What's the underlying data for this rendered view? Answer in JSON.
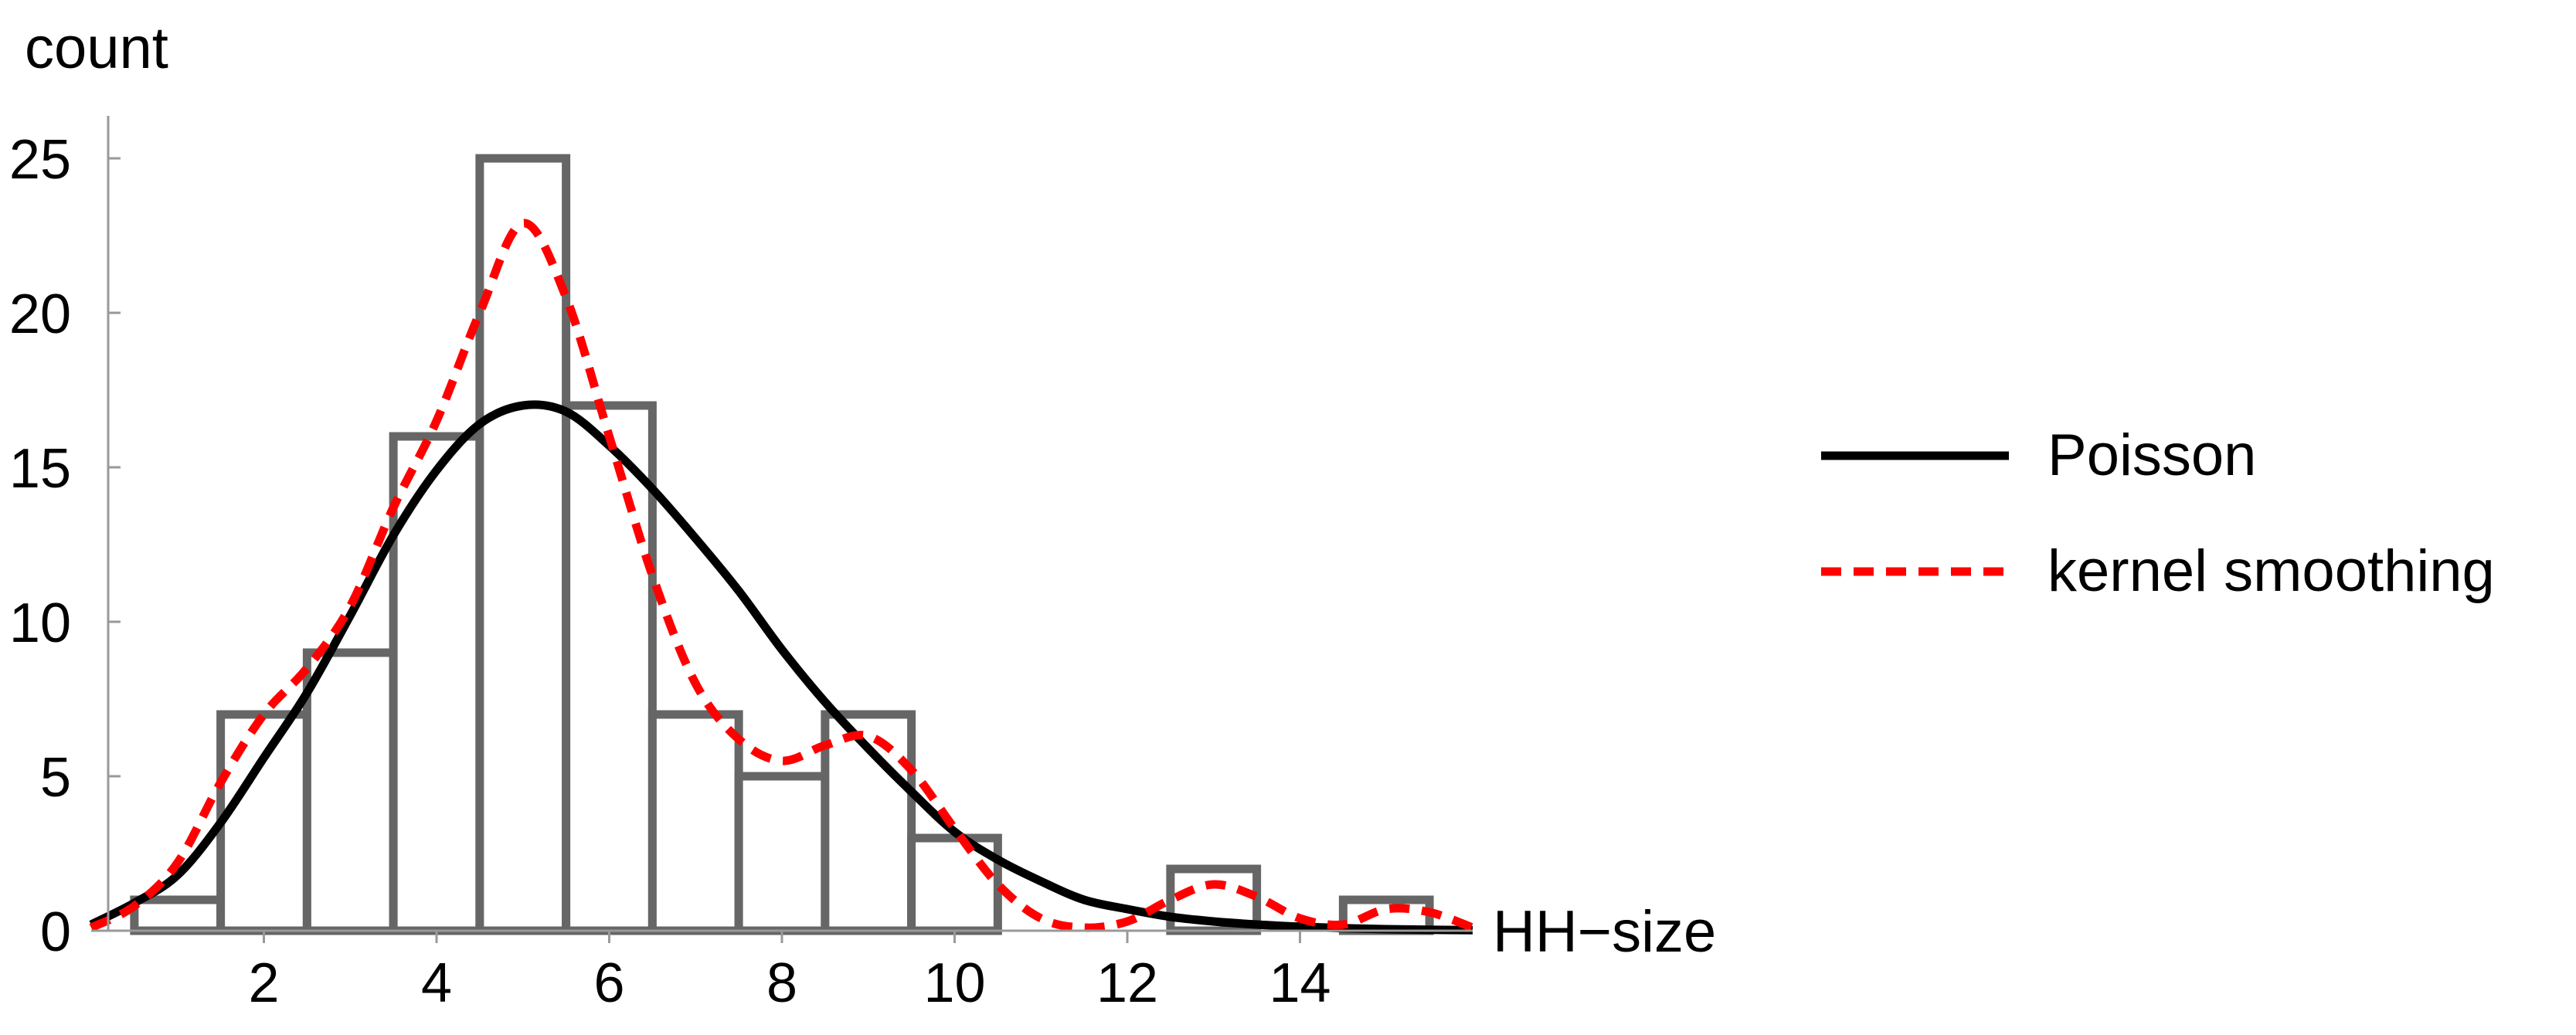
{
  "chart_data": {
    "type": "bar",
    "xlabel": "HH−size",
    "ylabel": "count",
    "xlim": [
      0,
      16
    ],
    "ylim": [
      0,
      25
    ],
    "grid": false,
    "legend_position": "right",
    "x_ticks": [
      2,
      4,
      6,
      8,
      10,
      12,
      14
    ],
    "x_tick_labels": [
      "2",
      "4",
      "6",
      "8",
      "10",
      "12",
      "14"
    ],
    "y_ticks": [
      0,
      5,
      10,
      15,
      20,
      25
    ],
    "y_tick_labels": [
      "0",
      "5",
      "10",
      "15",
      "20",
      "25"
    ],
    "histogram": {
      "bin_width": 1,
      "bins": [
        {
          "center": 1,
          "count": 1
        },
        {
          "center": 2,
          "count": 7
        },
        {
          "center": 3,
          "count": 9
        },
        {
          "center": 4,
          "count": 16
        },
        {
          "center": 5,
          "count": 25
        },
        {
          "center": 6,
          "count": 17
        },
        {
          "center": 7,
          "count": 7
        },
        {
          "center": 8,
          "count": 5
        },
        {
          "center": 9,
          "count": 7
        },
        {
          "center": 10,
          "count": 3
        },
        {
          "center": 13,
          "count": 2
        },
        {
          "center": 15,
          "count": 1
        }
      ],
      "color": "#666666"
    },
    "series": [
      {
        "name": "Poisson",
        "style": "solid",
        "color": "#000000",
        "x": [
          0,
          0.5,
          1,
          1.5,
          2,
          2.5,
          3,
          3.5,
          4,
          4.5,
          5,
          5.5,
          6,
          6.5,
          7,
          7.5,
          8,
          8.5,
          9,
          9.5,
          10,
          10.5,
          11,
          11.5,
          12,
          12.5,
          13,
          13.5,
          14,
          14.5,
          15,
          15.5,
          16
        ],
        "y": [
          0.2,
          0.9,
          1.8,
          3.5,
          5.6,
          7.7,
          10.2,
          12.8,
          14.9,
          16.4,
          17.0,
          16.8,
          15.7,
          14.3,
          12.7,
          11.0,
          9.1,
          7.4,
          5.9,
          4.5,
          3.2,
          2.3,
          1.6,
          1.0,
          0.7,
          0.45,
          0.3,
          0.2,
          0.13,
          0.08,
          0.05,
          0.03,
          0.02
        ]
      },
      {
        "name": "kernel smoothing",
        "style": "dashed",
        "color": "#ff0000",
        "x": [
          0,
          0.5,
          1,
          1.5,
          2,
          2.5,
          3,
          3.5,
          4,
          4.5,
          5,
          5.5,
          6,
          6.5,
          7,
          7.5,
          8,
          8.5,
          9,
          9.5,
          10,
          10.5,
          11,
          11.5,
          12,
          12.5,
          13,
          13.5,
          14,
          14.5,
          15,
          15.5,
          16
        ],
        "y": [
          0.1,
          0.8,
          2.2,
          4.8,
          7.0,
          8.5,
          10.5,
          13.7,
          16.5,
          20.0,
          22.9,
          20.5,
          16.0,
          11.5,
          8.0,
          6.2,
          5.5,
          6.0,
          6.3,
          5.2,
          3.3,
          1.5,
          0.4,
          0.1,
          0.3,
          1.0,
          1.5,
          1.1,
          0.4,
          0.2,
          0.7,
          0.6,
          0.1
        ]
      }
    ]
  }
}
